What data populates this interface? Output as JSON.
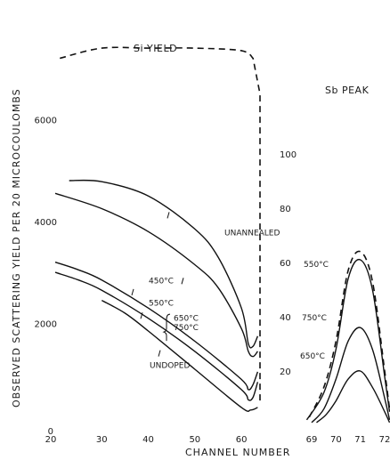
{
  "chart_data": [
    {
      "type": "line",
      "title": "Si YIELD",
      "xlabel": "CHANNEL NUMBER",
      "ylabel": "OBSERVED SCATTERING YIELD PER 20 MICROCOULOMBS",
      "xlim": [
        20,
        64
      ],
      "ylim": [
        0,
        7000
      ],
      "x_ticks": [
        20,
        30,
        40,
        50,
        60
      ],
      "y_ticks": [
        0,
        2000,
        4000,
        6000
      ],
      "grid": false,
      "series": [
        {
          "name": "UNANNEALED",
          "x": [
            23,
            30,
            40,
            50,
            55,
            60,
            61.5,
            62.5,
            63.5
          ],
          "y": [
            4800,
            4780,
            4500,
            3850,
            3300,
            2300,
            1600,
            1550,
            1750
          ]
        },
        {
          "name": "450°C",
          "x": [
            20,
            30,
            40,
            50,
            55,
            60,
            61.5,
            62.5,
            63.5
          ],
          "y": [
            4550,
            4250,
            3800,
            3150,
            2700,
            1900,
            1450,
            1350,
            1450
          ]
        },
        {
          "name": "550°C",
          "x": [
            20,
            25,
            30,
            40,
            50,
            60,
            61.5,
            62.5,
            63.5
          ],
          "y": [
            3200,
            3050,
            2850,
            2300,
            1650,
            900,
            700,
            800,
            1050
          ]
        },
        {
          "name": "650°C",
          "x": [
            20,
            25,
            30,
            40,
            50,
            60,
            61.5,
            62.5,
            63.5
          ],
          "y": [
            3000,
            2850,
            2650,
            2100,
            1450,
            700,
            500,
            550,
            850
          ]
        },
        {
          "name": "UNDOPED",
          "x": [
            30,
            35,
            40,
            50,
            60,
            62,
            63.5
          ],
          "y": [
            2450,
            2200,
            1850,
            1100,
            350,
            300,
            350
          ]
        }
      ],
      "envelope": {
        "x": [
          21,
          30,
          40,
          50,
          60,
          62.5,
          64,
          64
        ],
        "y": [
          7200,
          7400,
          7400,
          7400,
          7350,
          7200,
          6500,
          400
        ]
      },
      "annotations": [
        "650°C",
        "750°C"
      ]
    },
    {
      "type": "line",
      "title": "Sb PEAK",
      "xlim": [
        68.7,
        72.2
      ],
      "ylim": [
        0,
        120
      ],
      "x_ticks": [
        69,
        70,
        71,
        72
      ],
      "y_ticks": [
        20,
        40,
        60,
        80,
        100
      ],
      "grid": false,
      "series": [
        {
          "name": "550°C",
          "x": [
            68.8,
            69.5,
            70,
            70.5,
            71,
            71.5,
            72,
            72.2
          ],
          "y": [
            2,
            12,
            28,
            54,
            61,
            50,
            18,
            5
          ]
        },
        {
          "name": "750°C",
          "x": [
            69,
            69.5,
            70,
            70.5,
            71,
            71.5,
            72,
            72.2
          ],
          "y": [
            1,
            6,
            17,
            31,
            36,
            28,
            10,
            2
          ]
        },
        {
          "name": "650°C",
          "x": [
            69.2,
            69.6,
            70,
            70.5,
            71,
            71.5,
            72,
            72.2
          ],
          "y": [
            1,
            4,
            9,
            17,
            20,
            14,
            5,
            1
          ]
        }
      ],
      "envelope": {
        "x": [
          68.9,
          69.5,
          70,
          70.5,
          71,
          71.5,
          72,
          72.2
        ],
        "y": [
          3,
          14,
          31,
          57,
          64,
          53,
          20,
          6
        ]
      }
    }
  ]
}
